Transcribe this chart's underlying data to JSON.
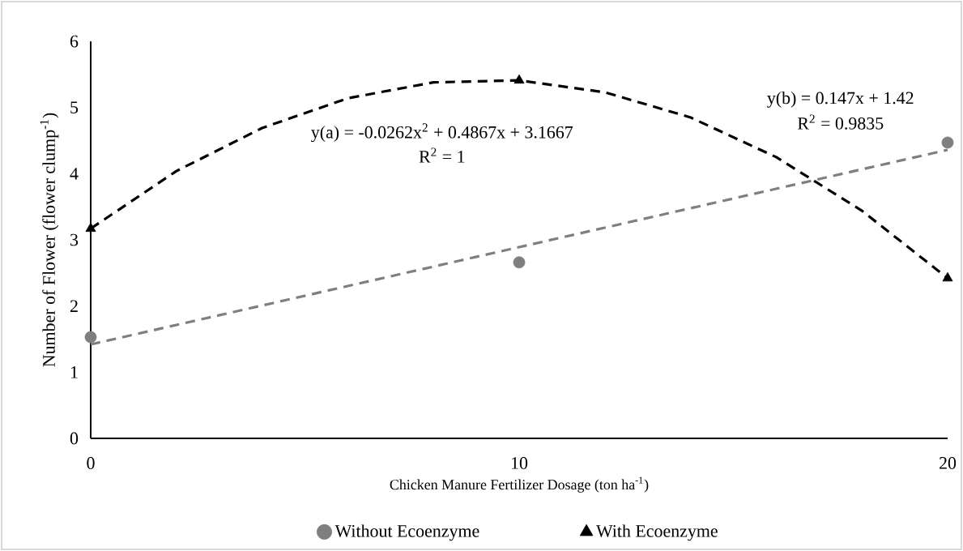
{
  "chart_data": {
    "type": "scatter",
    "xlabel": "Chicken Manure Fertilizer Dosage (ton ha$^{-1}$)",
    "ylabel": "Number of Flower (flower clump$^{-1}$)",
    "xlim": [
      0,
      20
    ],
    "xticks": [
      0,
      10,
      20
    ],
    "ylim": [
      0,
      6
    ],
    "yticks": [
      0,
      1,
      2,
      3,
      4,
      5,
      6
    ],
    "legend": "bottom",
    "series": [
      {
        "type": "line",
        "color": "#7f7f7f",
        "line_style": "dashed",
        "marker": "none",
        "x": [
          0,
          20
        ],
        "values": [
          1.42,
          4.36
        ]
      },
      {
        "type": "line",
        "color": "#000000",
        "line_style": "dashed",
        "marker": "none",
        "x": [
          0,
          2,
          4,
          6,
          8,
          10,
          12,
          14,
          16,
          18,
          20
        ],
        "values": [
          3.17,
          4.04,
          4.69,
          5.14,
          5.38,
          5.41,
          5.23,
          4.85,
          4.25,
          3.44,
          2.42
        ]
      },
      {
        "name": "Without Ecoenzyme",
        "color": "#7f7f7f",
        "marker": "circle",
        "x": [
          0,
          10,
          20
        ],
        "values": [
          1.53,
          2.66,
          4.47
        ]
      },
      {
        "name": "With Ecoenzyme",
        "color": "#000000",
        "marker": "triangle",
        "x": [
          0,
          10,
          20
        ],
        "values": [
          3.17,
          5.41,
          2.42
        ]
      }
    ],
    "annotations": [
      "y(a) = -0.0262x$^{2}$ + 0.4867x + 3.1667",
      "R$^{2}$ = 1",
      "y(b) = 0.147x + 1.42",
      "R$^{2}$ = 0.9835"
    ]
  }
}
